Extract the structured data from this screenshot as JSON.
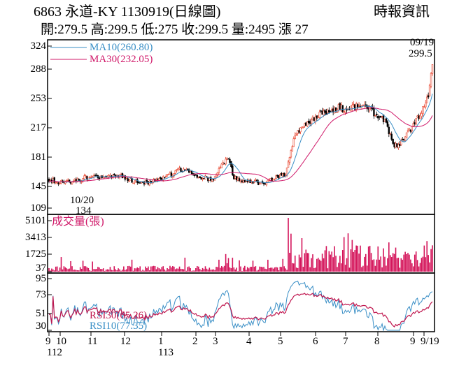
{
  "header": {
    "title": "6863  永道-KY 1130919(日線圖)",
    "source": "時報資訊",
    "summary": "開:279.5 高:299.5 低:275 收:299.5 量:2495 漲 27"
  },
  "colors": {
    "up": "#e8412a",
    "down": "#000000",
    "ma10": "#3a8fc6",
    "ma30": "#d01a6a",
    "volume": "#d4145a",
    "rsi30": "#c0174f",
    "rsi10": "#3a8fc6",
    "frame": "#000000"
  },
  "chart_data": [
    {
      "type": "candlestick",
      "x_dates": [
        "9",
        "10",
        "11",
        "12",
        "1",
        "2",
        "3",
        "4",
        "5",
        "6",
        "7",
        "8",
        "9",
        "9/19"
      ],
      "y_ticks": [
        "324",
        "288",
        "253",
        "217",
        "181",
        "145",
        "109"
      ],
      "ylim": [
        109,
        324
      ],
      "legend": [
        {
          "name": "MA10(260.80)",
          "color": "#3a8fc6"
        },
        {
          "name": "MA30(232.05)",
          "color": "#d01a6a"
        }
      ],
      "annotations": {
        "low_date": "10/20",
        "low_value": "134",
        "last_date": "09/19",
        "last_value": "299.5"
      },
      "approx_close_path": [
        [
          0,
          147
        ],
        [
          8,
          144
        ],
        [
          16,
          143
        ],
        [
          24,
          148
        ],
        [
          32,
          151
        ],
        [
          40,
          148
        ],
        [
          48,
          153
        ],
        [
          56,
          149
        ],
        [
          64,
          144
        ],
        [
          72,
          142
        ],
        [
          80,
          146
        ],
        [
          88,
          152
        ],
        [
          96,
          160
        ],
        [
          104,
          157
        ],
        [
          112,
          150
        ],
        [
          120,
          147
        ],
        [
          126,
          162
        ],
        [
          132,
          175
        ],
        [
          136,
          150
        ],
        [
          142,
          146
        ],
        [
          150,
          144
        ],
        [
          158,
          142
        ],
        [
          166,
          148
        ],
        [
          174,
          155
        ],
        [
          180,
          200
        ],
        [
          184,
          212
        ],
        [
          190,
          222
        ],
        [
          198,
          232
        ],
        [
          206,
          240
        ],
        [
          214,
          244
        ],
        [
          220,
          237
        ],
        [
          226,
          245
        ],
        [
          230,
          248
        ],
        [
          236,
          240
        ],
        [
          242,
          233
        ],
        [
          246,
          226
        ],
        [
          250,
          212
        ],
        [
          254,
          192
        ],
        [
          258,
          196
        ],
        [
          262,
          206
        ],
        [
          266,
          212
        ],
        [
          270,
          225
        ],
        [
          276,
          245
        ],
        [
          279,
          262
        ],
        [
          282,
          299.5
        ]
      ],
      "ma10_final": 260.8,
      "ma30_final": 232.05,
      "close": 299.5
    },
    {
      "type": "bar",
      "name": "成交量(張)",
      "y_ticks": [
        "5101",
        "3413",
        "1725",
        "37"
      ],
      "ylim": [
        0,
        5101
      ],
      "max_bar": 5101,
      "last": 2495
    },
    {
      "type": "line",
      "y_ticks": [
        "95",
        "73",
        "51",
        "30"
      ],
      "ylim": [
        30,
        95
      ],
      "series": [
        {
          "name": "RSI30(65.26)",
          "last": 65.26
        },
        {
          "name": "RSI10(77.35)",
          "last": 77.35
        }
      ]
    }
  ],
  "xaxis": {
    "labels": [
      "9",
      "10",
      "11",
      "12",
      "1",
      "2",
      "3",
      "4",
      "5",
      "6",
      "7",
      "8",
      "9",
      "9/19"
    ],
    "year_labels": [
      "112",
      "113"
    ]
  }
}
